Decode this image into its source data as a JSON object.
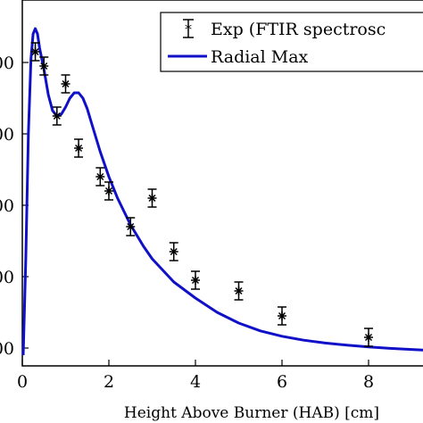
{
  "chart_data": {
    "type": "line",
    "xlabel": "Height Above Burner (HAB) [cm]",
    "ylabel": "",
    "xlim": [
      0,
      9.5
    ],
    "ylim": [
      0,
      1.0
    ],
    "x_ticks": [
      0,
      2,
      4,
      6,
      8
    ],
    "y_tick_labels": [
      "00",
      "00",
      "00",
      "00",
      "00"
    ],
    "y_ticks": [
      0.05,
      0.25,
      0.45,
      0.65,
      0.85
    ],
    "grid": false,
    "legend_position": "top-right",
    "series": [
      {
        "name": "Exp (FTIR spectrosc",
        "kind": "errorbar",
        "color": "#000000",
        "marker": "asterisk",
        "points": [
          {
            "x": 0.3,
            "y": 0.88,
            "err": 0.025
          },
          {
            "x": 0.5,
            "y": 0.84,
            "err": 0.025
          },
          {
            "x": 0.8,
            "y": 0.7,
            "err": 0.025
          },
          {
            "x": 1.0,
            "y": 0.79,
            "err": 0.025
          },
          {
            "x": 1.3,
            "y": 0.61,
            "err": 0.025
          },
          {
            "x": 1.8,
            "y": 0.53,
            "err": 0.025
          },
          {
            "x": 2.0,
            "y": 0.49,
            "err": 0.025
          },
          {
            "x": 2.5,
            "y": 0.39,
            "err": 0.025
          },
          {
            "x": 3.0,
            "y": 0.47,
            "err": 0.025
          },
          {
            "x": 3.5,
            "y": 0.32,
            "err": 0.025
          },
          {
            "x": 4.0,
            "y": 0.24,
            "err": 0.025
          },
          {
            "x": 5.0,
            "y": 0.21,
            "err": 0.025
          },
          {
            "x": 6.0,
            "y": 0.14,
            "err": 0.025
          },
          {
            "x": 8.0,
            "y": 0.08,
            "err": 0.025
          }
        ]
      },
      {
        "name": "Radial Max",
        "kind": "line",
        "color": "#1010c8",
        "points": [
          [
            0.02,
            0.03
          ],
          [
            0.08,
            0.3
          ],
          [
            0.14,
            0.65
          ],
          [
            0.2,
            0.86
          ],
          [
            0.25,
            0.93
          ],
          [
            0.3,
            0.945
          ],
          [
            0.35,
            0.93
          ],
          [
            0.4,
            0.89
          ],
          [
            0.5,
            0.83
          ],
          [
            0.6,
            0.76
          ],
          [
            0.7,
            0.715
          ],
          [
            0.8,
            0.7
          ],
          [
            0.9,
            0.705
          ],
          [
            1.0,
            0.725
          ],
          [
            1.1,
            0.75
          ],
          [
            1.2,
            0.765
          ],
          [
            1.3,
            0.765
          ],
          [
            1.4,
            0.75
          ],
          [
            1.5,
            0.72
          ],
          [
            1.6,
            0.68
          ],
          [
            1.8,
            0.6
          ],
          [
            2.0,
            0.53
          ],
          [
            2.2,
            0.47
          ],
          [
            2.5,
            0.395
          ],
          [
            2.8,
            0.335
          ],
          [
            3.0,
            0.3
          ],
          [
            3.5,
            0.235
          ],
          [
            4.0,
            0.19
          ],
          [
            4.5,
            0.15
          ],
          [
            5.0,
            0.12
          ],
          [
            5.5,
            0.098
          ],
          [
            6.0,
            0.083
          ],
          [
            6.5,
            0.072
          ],
          [
            7.0,
            0.064
          ],
          [
            7.5,
            0.058
          ],
          [
            8.0,
            0.053
          ],
          [
            8.5,
            0.049
          ],
          [
            9.0,
            0.046
          ],
          [
            9.5,
            0.043
          ]
        ]
      }
    ]
  }
}
